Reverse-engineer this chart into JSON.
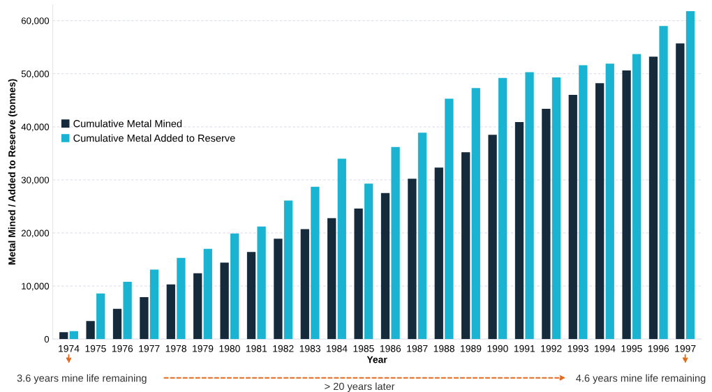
{
  "chart_data": {
    "type": "bar",
    "xlabel": "Year",
    "ylabel": "Metal Mined / Added to Reserve (tonnes)",
    "categories": [
      "1974",
      "1975",
      "1976",
      "1977",
      "1978",
      "1979",
      "1980",
      "1981",
      "1982",
      "1983",
      "1984",
      "1985",
      "1986",
      "1987",
      "1988",
      "1989",
      "1990",
      "1991",
      "1992",
      "1993",
      "1994",
      "1995",
      "1996",
      "1997"
    ],
    "series": [
      {
        "name": "Cumulative Metal Mined",
        "color": "#152b3c",
        "values": [
          1300,
          3400,
          5700,
          7900,
          10300,
          12400,
          14400,
          16400,
          18900,
          20700,
          22800,
          24600,
          27500,
          30200,
          32300,
          35200,
          38500,
          40900,
          43400,
          46000,
          48200,
          50600,
          53200,
          55700
        ]
      },
      {
        "name": "Cumulative Metal Added to Reserve",
        "color": "#1ab3d1",
        "values": [
          1500,
          8600,
          10800,
          13100,
          15300,
          17000,
          19900,
          21200,
          26100,
          28700,
          34000,
          29300,
          36200,
          38900,
          45300,
          47300,
          49200,
          50300,
          49300,
          51600,
          51900,
          53700,
          59000,
          61800
        ]
      }
    ],
    "ylim": [
      0,
      63000
    ],
    "yticks": [
      0,
      {
        "value": 10000,
        "label": "10,000"
      },
      {
        "value": 20000,
        "label": "20,000"
      },
      {
        "value": 30000,
        "label": "30,000"
      },
      {
        "value": 40000,
        "label": "40,000"
      },
      {
        "value": 50000,
        "label": "50,000"
      },
      {
        "value": 60000,
        "label": "60,000"
      }
    ],
    "grid": "y",
    "legend": "left",
    "annotations": [
      "3.6 years mine life remaining",
      "> 20 years later",
      "4.6 years mine life remaining"
    ]
  }
}
